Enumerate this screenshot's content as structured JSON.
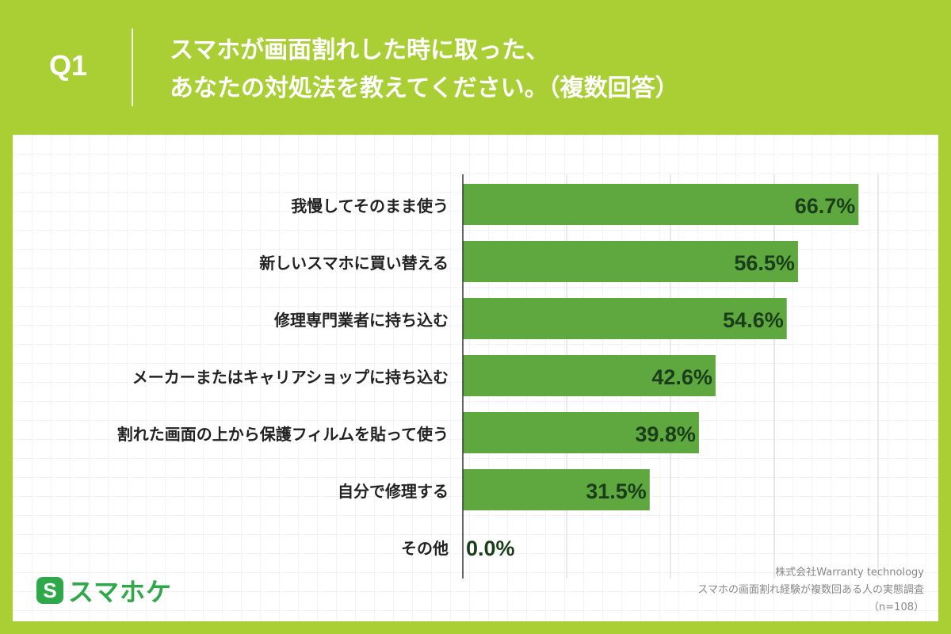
{
  "header": {
    "q_label": "Q1",
    "question_line1": "スマホが画面割れした時に取った、",
    "question_line2": "あなたの対処法を教えてください。（複数回答）"
  },
  "logo": {
    "mark": "S",
    "text": "スマホケ"
  },
  "source": {
    "company": "株式会社Warranty technology",
    "survey": "スマホの画面割れ経験が複数回ある人の実態調査",
    "sample": "（n=108）"
  },
  "colors": {
    "background": "#a9cf35",
    "bar": "#5fa83f",
    "value_text": "#1a3d1a",
    "logo": "#2fa84a"
  },
  "chart_data": {
    "type": "bar",
    "orientation": "horizontal",
    "categories": [
      "我慢してそのまま使う",
      "新しいスマホに買い替える",
      "修理専門業者に持ち込む",
      "メーカーまたはキャリアショップに持ち込む",
      "割れた画面の上から保護フィルムを貼って使う",
      "自分で修理する",
      "その他"
    ],
    "values": [
      66.7,
      56.5,
      54.6,
      42.6,
      39.8,
      31.5,
      0.0
    ],
    "value_labels": [
      "66.7%",
      "56.5%",
      "54.6%",
      "42.6%",
      "39.8%",
      "31.5%",
      "0.0%"
    ],
    "unit": "%",
    "xlim": [
      0,
      70
    ],
    "gridlines": [
      0,
      17.5,
      35,
      52.5,
      70
    ],
    "grid": true,
    "legend": "none"
  }
}
